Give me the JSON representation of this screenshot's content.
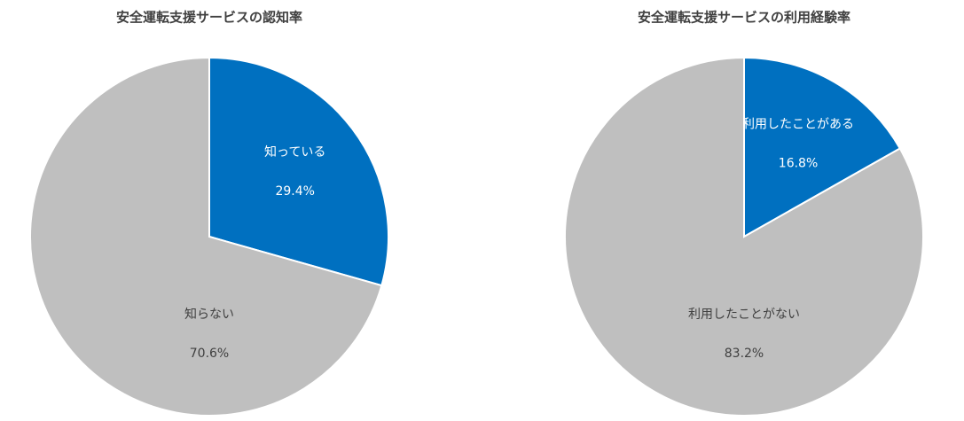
{
  "chart_data": [
    {
      "type": "pie",
      "title": "安全運転支援サービスの認知率",
      "categories": [
        "知っている",
        "知らない"
      ],
      "values": [
        29.4,
        70.6
      ],
      "value_labels": [
        "29.4%",
        "70.6%"
      ],
      "colors": [
        "#0070c0",
        "#bfbfbf"
      ]
    },
    {
      "type": "pie",
      "title": "安全運転支援サービスの利用経験率",
      "categories": [
        "利用したことがある",
        "利用したことがない"
      ],
      "values": [
        16.8,
        83.2
      ],
      "value_labels": [
        "16.8%",
        "83.2%"
      ],
      "colors": [
        "#0070c0",
        "#bfbfbf"
      ]
    }
  ]
}
